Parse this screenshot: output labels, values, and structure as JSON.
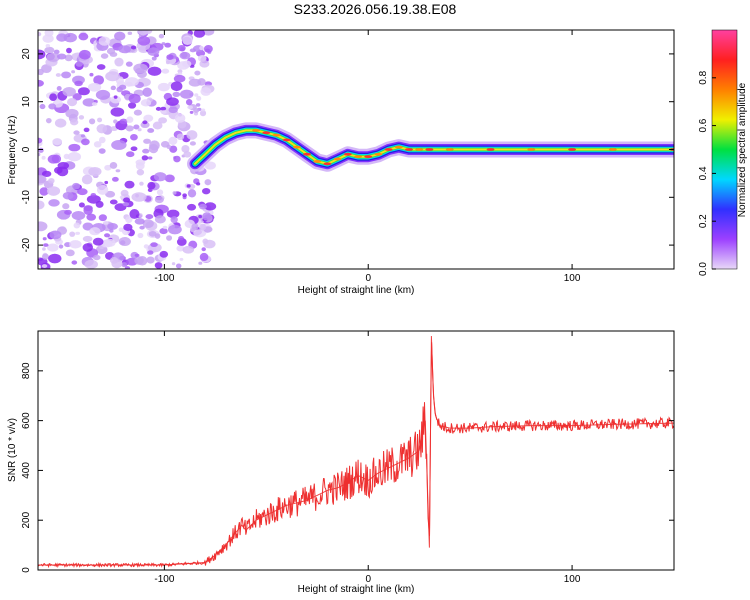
{
  "title": "S233.2026.056.19.38.E08",
  "chart_data": [
    {
      "type": "heatmap",
      "title": "S233.2026.056.19.38.E08",
      "xlabel": "Height of straight line (km)",
      "ylabel": "Frequency (Hz)",
      "xlim": [
        -162,
        150
      ],
      "ylim": [
        -25,
        25
      ],
      "x_ticks": [
        -100,
        0,
        100
      ],
      "y_ticks": [
        -20,
        -10,
        0,
        10,
        20
      ],
      "x_tick_labels": [
        "-100",
        "0",
        "100"
      ],
      "y_tick_labels": [
        "-20",
        "-10",
        "0",
        "10",
        "20"
      ],
      "noise_region_x": [
        -162,
        -80
      ],
      "ridge": {
        "x": [
          -85,
          -80,
          -75,
          -70,
          -65,
          -60,
          -55,
          -50,
          -45,
          -40,
          -35,
          -30,
          -25,
          -20,
          -15,
          -10,
          -5,
          0,
          5,
          10,
          15,
          20,
          25,
          30,
          40,
          60,
          80,
          100,
          120,
          150
        ],
        "frequency": [
          -3,
          -1,
          1,
          2.5,
          3.5,
          4,
          4,
          3.5,
          3,
          2,
          0.5,
          -1,
          -2.5,
          -3,
          -2,
          -1,
          -1.5,
          -1.5,
          -1,
          0,
          0.5,
          0,
          0,
          0,
          0,
          0,
          0,
          0,
          0,
          0
        ]
      },
      "colorbar": {
        "label": "Normalized spectral amplitude",
        "range": [
          0,
          1
        ],
        "ticks": [
          0.0,
          0.2,
          0.4,
          0.6,
          0.8
        ],
        "tick_labels": [
          "0.0",
          "0.2",
          "0.4",
          "0.6",
          "0.8"
        ],
        "colors": [
          "#e8d8f8",
          "#9c40ff",
          "#3030ff",
          "#00d8ff",
          "#00e040",
          "#f0f000",
          "#ff8000",
          "#ff2020",
          "#ff40a0"
        ]
      }
    },
    {
      "type": "line",
      "xlabel": "Height of straight line (km)",
      "ylabel": "SNR (10 * v/v)",
      "xlim": [
        -162,
        150
      ],
      "ylim": [
        0,
        960
      ],
      "x_ticks": [
        -100,
        0,
        100
      ],
      "y_ticks": [
        0,
        200,
        400,
        600,
        800
      ],
      "x_tick_labels": [
        "-100",
        "0",
        "100"
      ],
      "y_tick_labels": [
        "0",
        "200",
        "400",
        "600",
        "800"
      ],
      "series": [
        {
          "name": "SNR",
          "color": "#ee3030",
          "x": [
            -162,
            -140,
            -120,
            -100,
            -90,
            -80,
            -75,
            -70,
            -65,
            -62,
            -60,
            -55,
            -50,
            -45,
            -40,
            -35,
            -30,
            -25,
            -20,
            -15,
            -10,
            -5,
            0,
            5,
            10,
            15,
            20,
            25,
            28,
            30,
            31,
            32,
            33,
            35,
            40,
            50,
            60,
            80,
            100,
            120,
            150
          ],
          "y": [
            20,
            20,
            20,
            20,
            25,
            30,
            60,
            100,
            150,
            180,
            160,
            200,
            220,
            240,
            260,
            270,
            280,
            300,
            320,
            330,
            350,
            380,
            360,
            390,
            410,
            430,
            450,
            480,
            600,
            90,
            940,
            700,
            620,
            580,
            570,
            570,
            575,
            580,
            580,
            585,
            590
          ]
        }
      ]
    }
  ]
}
